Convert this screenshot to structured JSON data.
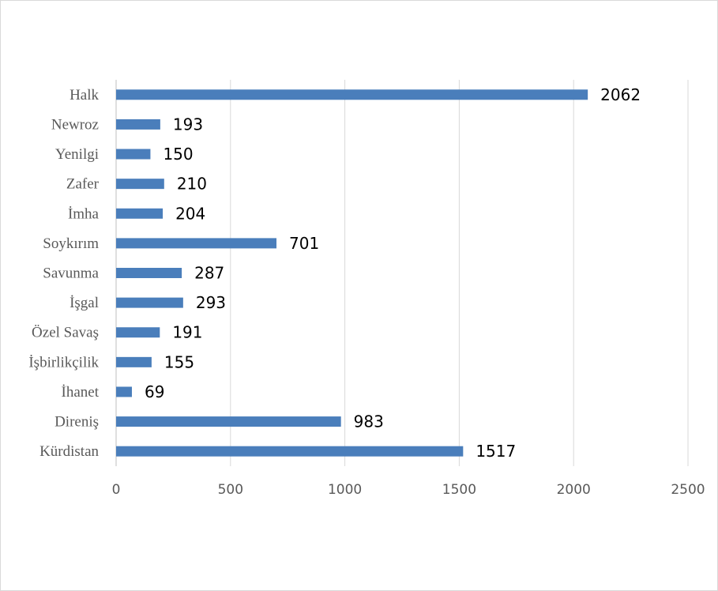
{
  "chart_data": {
    "type": "bar",
    "orientation": "horizontal",
    "title": "",
    "xlabel": "",
    "ylabel": "",
    "categories": [
      "Halk",
      "Newroz",
      "Yenilgi",
      "Zafer",
      "İmha",
      "Soykırım",
      "Savunma",
      "İşgal",
      "Özel Savaş",
      "İşbirlikçilik",
      "İhanet",
      "Direniş",
      "Kürdistan"
    ],
    "values": [
      2062,
      193,
      150,
      210,
      204,
      701,
      287,
      293,
      191,
      155,
      69,
      983,
      1517
    ],
    "xlim": [
      0,
      2500
    ],
    "xticks": [
      0,
      500,
      1000,
      1500,
      2000,
      2500
    ],
    "grid": "vertical",
    "legend": "none",
    "bar_color": "#4a7ebb",
    "data_labels": true
  }
}
